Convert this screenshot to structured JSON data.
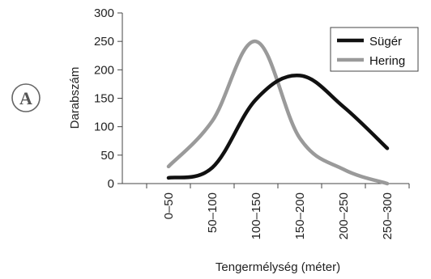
{
  "panel_label": "A",
  "chart_data": {
    "type": "line",
    "title": "",
    "xlabel": "Tengermélység (méter)",
    "ylabel": "Darabszám",
    "categories": [
      "0–50",
      "50–100",
      "100–150",
      "150–200",
      "200–250",
      "250–300"
    ],
    "ylim": [
      0,
      300
    ],
    "yticks": [
      0,
      50,
      100,
      150,
      200,
      250,
      300
    ],
    "grid": false,
    "legend": "top-right",
    "series": [
      {
        "name": "Sügér",
        "color": "#111111",
        "values": [
          10,
          28,
          148,
          190,
          135,
          62
        ]
      },
      {
        "name": "Hering",
        "color": "#9a9a9a",
        "values": [
          30,
          110,
          250,
          80,
          25,
          0
        ]
      }
    ]
  }
}
